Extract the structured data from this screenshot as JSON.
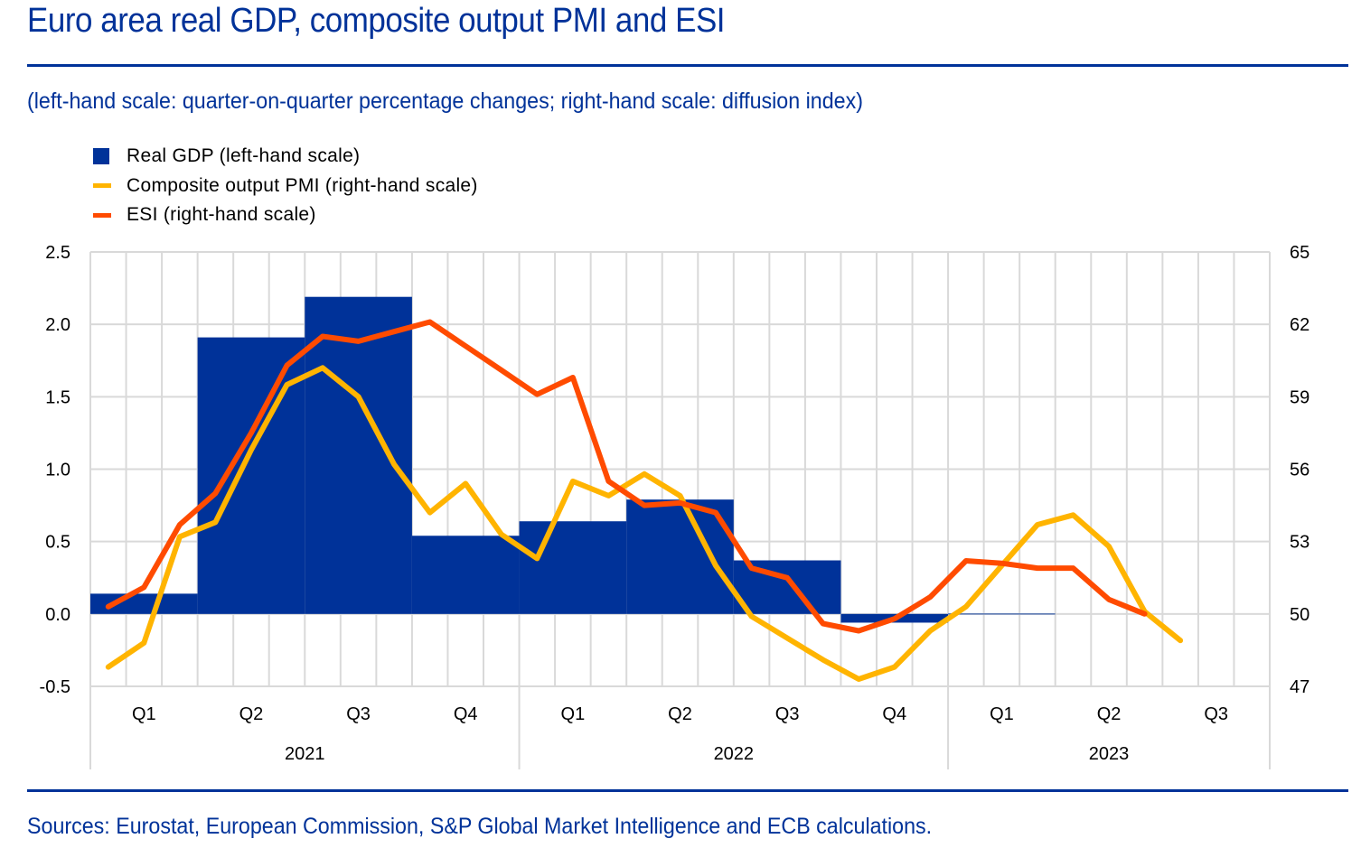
{
  "header": {
    "title": "Euro area real GDP, composite output PMI and ESI",
    "subtitle": "(left-hand scale: quarter-on-quarter percentage changes; right-hand scale: diffusion index)"
  },
  "footer": {
    "source": "Sources: Eurostat, European Commission, S&P Global Market Intelligence and ECB calculations."
  },
  "colors": {
    "brand": "#003299",
    "gdp": "#003299",
    "pmi": "#FFB400",
    "esi": "#FF4B00",
    "grid": "#D9D9D9"
  },
  "chart_data": {
    "type": "bar+line",
    "title": "Euro area real GDP, composite output PMI and ESI",
    "subtitle": "(left-hand scale: quarter-on-quarter percentage changes; right-hand scale: diffusion index)",
    "legend": {
      "placement": "top-left",
      "entries": [
        {
          "label": "Real GDP (left-hand scale)",
          "marker": "box",
          "series": "gdp"
        },
        {
          "label": "Composite output PMI (right-hand scale)",
          "marker": "line",
          "series": "pmi"
        },
        {
          "label": "ESI (right-hand scale)",
          "marker": "line",
          "series": "esi"
        }
      ]
    },
    "grid": true,
    "months_total": 33,
    "x_quarter_labels": [
      "Q1",
      "Q2",
      "Q3",
      "Q4",
      "Q1",
      "Q2",
      "Q3",
      "Q4",
      "Q1",
      "Q2",
      "Q3"
    ],
    "x_year_labels": [
      {
        "label": "2021",
        "start_quarter": 0,
        "quarters": 4
      },
      {
        "label": "2022",
        "start_quarter": 4,
        "quarters": 4
      },
      {
        "label": "2023",
        "start_quarter": 8,
        "quarters": 3
      }
    ],
    "y_left": {
      "label": "quarter-on-quarter percentage changes",
      "lim": [
        -0.5,
        2.5
      ],
      "ticks": [
        "-0.5",
        "0.0",
        "0.5",
        "1.0",
        "1.5",
        "2.0",
        "2.5"
      ],
      "tick_values": [
        -0.5,
        0,
        0.5,
        1,
        1.5,
        2,
        2.5
      ]
    },
    "y_right": {
      "label": "diffusion index",
      "lim": [
        47,
        65
      ],
      "ticks": [
        "47",
        "50",
        "53",
        "56",
        "59",
        "62",
        "65"
      ],
      "tick_values": [
        47,
        50,
        53,
        56,
        59,
        62,
        65
      ]
    },
    "series": [
      {
        "name": "Real GDP (left-hand scale)",
        "key": "gdp",
        "type": "bar",
        "axis": "left",
        "quarters": [
          "2021Q1",
          "2021Q2",
          "2021Q3",
          "2021Q4",
          "2022Q1",
          "2022Q2",
          "2022Q3",
          "2022Q4",
          "2023Q1"
        ],
        "values": [
          0.14,
          1.91,
          2.19,
          0.54,
          0.64,
          0.79,
          0.37,
          -0.06,
          0.0
        ]
      },
      {
        "name": "Composite output PMI (right-hand scale)",
        "key": "pmi",
        "type": "line",
        "axis": "right",
        "start": "2021-01",
        "values": [
          47.8,
          48.8,
          53.2,
          53.8,
          56.8,
          59.5,
          60.2,
          59.0,
          56.2,
          54.2,
          55.4,
          53.3,
          52.3,
          55.5,
          54.9,
          55.8,
          54.9,
          52.0,
          49.9,
          49.0,
          48.1,
          47.3,
          47.8,
          49.3,
          50.3,
          52.0,
          53.7,
          54.1,
          52.8,
          50.1,
          48.9
        ]
      },
      {
        "name": "ESI (right-hand scale)",
        "key": "esi",
        "type": "line",
        "axis": "right",
        "start": "2021-01",
        "values": [
          50.3,
          51.1,
          53.7,
          55.0,
          57.5,
          60.3,
          61.5,
          61.3,
          61.7,
          62.1,
          61.1,
          60.1,
          59.1,
          59.8,
          55.5,
          54.5,
          54.6,
          54.2,
          51.9,
          51.5,
          49.6,
          49.3,
          49.8,
          50.7,
          52.2,
          52.1,
          51.9,
          51.9,
          50.6,
          50.0
        ]
      }
    ]
  }
}
